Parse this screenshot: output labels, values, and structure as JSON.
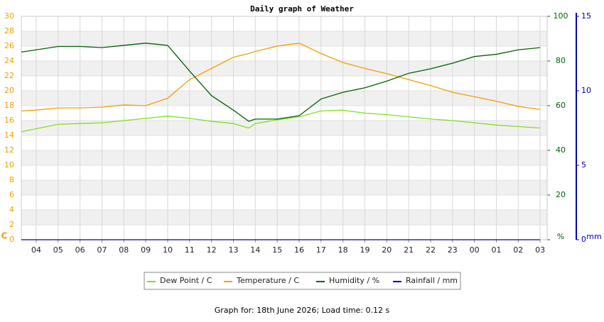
{
  "chart_data": {
    "type": "line",
    "title": "Daily graph of Weather",
    "footer": "Graph for: 18th June 2026; Load time: 0.12 s",
    "ylabel": "C",
    "y3label": "mm",
    "x": [
      3.32,
      4,
      5,
      6,
      7,
      8,
      9,
      10,
      11,
      12,
      13,
      13.7,
      14,
      15,
      16,
      17,
      18,
      19,
      20,
      21,
      22,
      23,
      24,
      25,
      26,
      27
    ],
    "xlim": [
      3.32,
      27.32
    ],
    "xticks": [
      {
        "value": 4,
        "label": "04"
      },
      {
        "value": 5,
        "label": "05"
      },
      {
        "value": 6,
        "label": "06"
      },
      {
        "value": 7,
        "label": "07"
      },
      {
        "value": 8,
        "label": "08"
      },
      {
        "value": 9,
        "label": "09"
      },
      10,
      11,
      12,
      13,
      14,
      15,
      16,
      17,
      18,
      19,
      20,
      21,
      22,
      23,
      {
        "value": 24,
        "label": "00"
      },
      {
        "value": 25,
        "label": "01"
      },
      {
        "value": 26,
        "label": "02"
      },
      {
        "value": 27,
        "label": "03"
      }
    ],
    "ylim": [
      0,
      30
    ],
    "yticks": [
      0,
      2,
      4,
      6,
      8,
      10,
      12,
      14,
      16,
      18,
      20,
      22,
      24,
      26,
      28,
      30
    ],
    "y2lim": [
      0,
      100
    ],
    "y2ticks": [
      {
        "value": 0,
        "label": "%"
      },
      20,
      40,
      60,
      80,
      100
    ],
    "y3lim": [
      0,
      15
    ],
    "y3ticks": [
      0,
      5,
      10,
      15
    ],
    "grid": true,
    "legend": "bottom",
    "series": [
      {
        "name": "Dew Point / C",
        "color": "#80e020",
        "values": [
          14.5,
          14.9,
          15.5,
          15.6,
          15.7,
          16.0,
          16.3,
          16.6,
          16.3,
          15.9,
          15.6,
          15.0,
          15.6,
          16.1,
          16.5,
          17.3,
          17.4,
          17.0,
          16.8,
          16.5,
          16.2,
          16.0,
          15.7,
          15.4,
          15.2,
          15.0
        ]
      },
      {
        "name": "Temperature / C",
        "color": "#f0a000",
        "values": [
          17.3,
          17.4,
          17.7,
          17.7,
          17.8,
          18.1,
          18.0,
          19.0,
          21.5,
          23.0,
          24.5,
          25.0,
          25.3,
          26.0,
          26.4,
          25.0,
          23.8,
          23.0,
          22.3,
          21.5,
          20.7,
          19.8,
          19.2,
          18.6,
          17.9,
          17.5
        ]
      },
      {
        "name": "Humidity / %",
        "color": "#006400",
        "axis": "y2",
        "values": [
          84,
          85,
          86.5,
          86.5,
          86,
          87,
          88,
          87,
          75.5,
          64.5,
          58,
          53,
          54,
          54,
          55.5,
          63,
          66,
          68,
          71,
          74.5,
          76.5,
          79,
          82,
          83,
          85,
          86
        ]
      },
      {
        "name": "Rainfall / mm",
        "color": "#0000b0",
        "axis": "y3",
        "values": [
          0,
          0,
          0,
          0,
          0,
          0,
          0,
          0,
          0,
          0,
          0,
          0,
          0,
          0,
          0,
          0,
          0,
          0,
          0,
          0,
          0,
          0,
          0,
          0,
          0,
          0
        ]
      }
    ]
  }
}
